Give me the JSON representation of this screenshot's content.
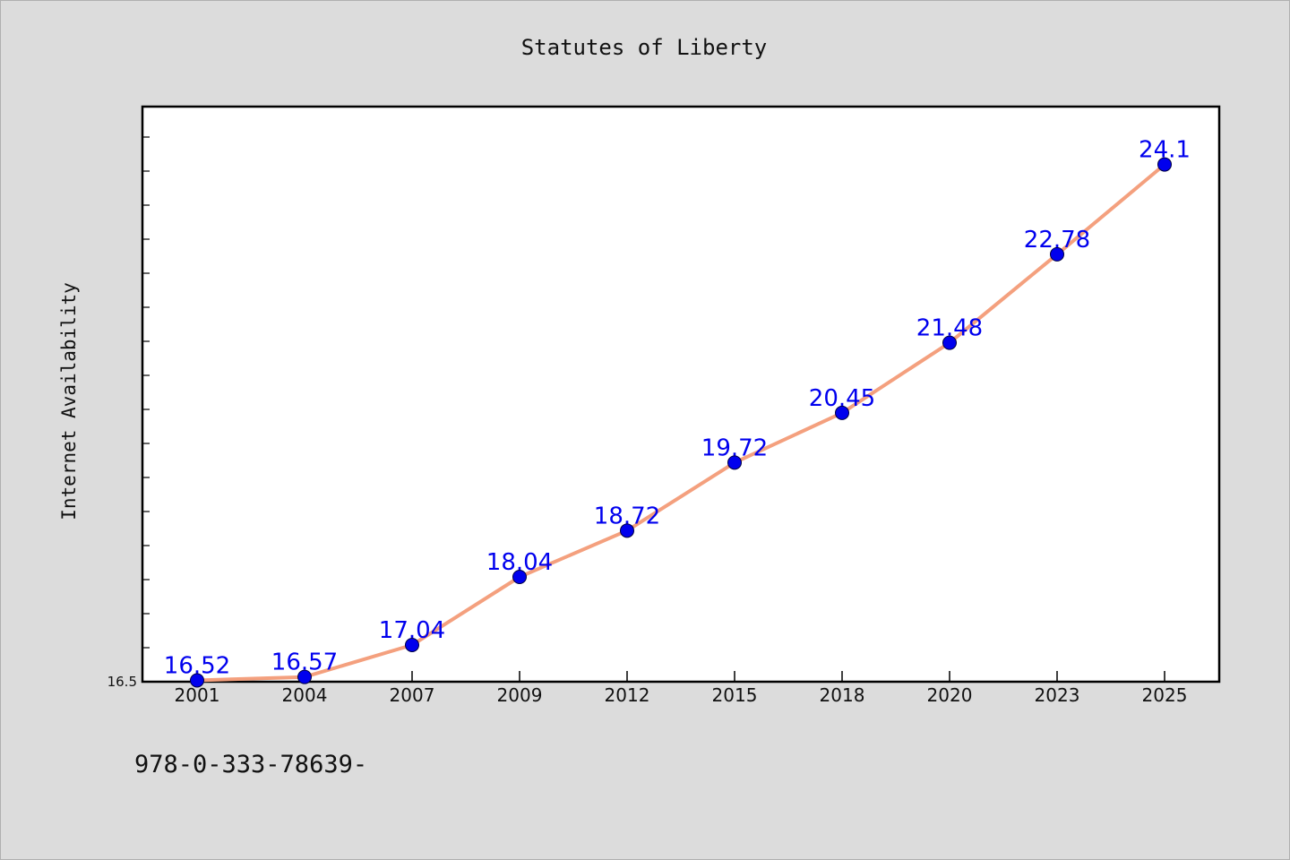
{
  "chart_data": {
    "type": "line",
    "title": "Statutes of Liberty",
    "xlabel": "",
    "ylabel": "Internet Availability",
    "categories": [
      "2001",
      "2004",
      "2007",
      "2009",
      "2012",
      "2015",
      "2018",
      "2020",
      "2023",
      "2025"
    ],
    "series": [
      {
        "values": [
          16.52,
          16.57,
          17.04,
          18.04,
          18.72,
          19.72,
          20.45,
          21.48,
          22.78,
          24.1
        ]
      }
    ],
    "data_labels": [
      "16.52",
      "16.57",
      "17.04",
      "18.04",
      "18.72",
      "19.72",
      "20.45",
      "21.48",
      "22.78",
      "24.1"
    ],
    "ylim": [
      16.5,
      24.95
    ],
    "ytick_labels": [
      "16.5"
    ],
    "grid": false,
    "legend": "none",
    "colors": {
      "line": "#f4a07e",
      "marker": "#0000ee",
      "label": "#0000ee",
      "background": "#dcdcdc",
      "plot_background": "#ffffff"
    }
  },
  "footer": {
    "code": "978-0-333-78639-"
  }
}
